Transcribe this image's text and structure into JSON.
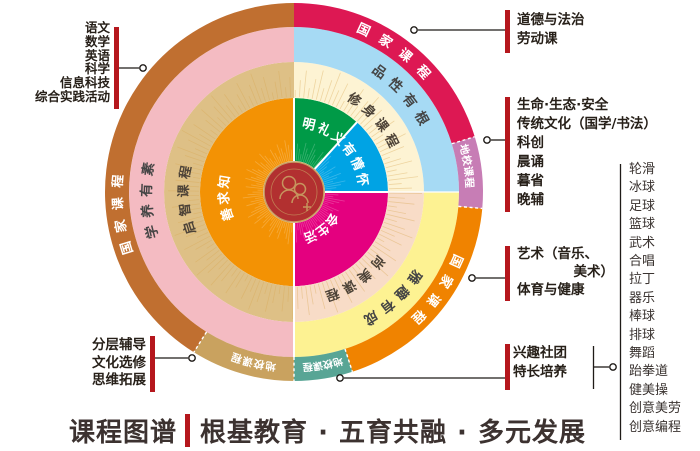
{
  "footer": {
    "title": "课程图谱",
    "slogan": "根基教育 · 五育共融 · 多元发展"
  },
  "colors": {
    "accent_red": "#b5171d",
    "connector_line": "#1f1b18",
    "center_disc": "#b23030",
    "center_gold": "#c9a063",
    "text_dark_on_ring": "#4d4338"
  },
  "callouts": {
    "national_left": {
      "lines": [
        "语文",
        "数学",
        "英语",
        "科学",
        "信息科技",
        "综合实践活动"
      ]
    },
    "school_left": {
      "lines": [
        "分层辅导",
        "文化选修",
        "思维拓展"
      ]
    },
    "national_top_right": {
      "lines": [
        "道德与法治",
        "劳动课"
      ]
    },
    "school_right": {
      "lines": [
        "生命·生态·安全",
        "传统文化（国学/书法）",
        "科创",
        "晨诵",
        "暮省",
        "晚辅"
      ]
    },
    "national_bottom_right": {
      "lines": [
        "艺术（音乐、",
        "美术）",
        "体育与健康"
      ]
    },
    "clubs": {
      "lines": [
        "兴趣社团",
        "特长培养"
      ]
    },
    "club_list": [
      "轮滑",
      "冰球",
      "足球",
      "篮球",
      "武术",
      "合唱",
      "拉丁",
      "器乐",
      "棒球",
      "排球",
      "舞蹈",
      "跆拳道",
      "健美操",
      "创意美劳",
      "创意编程"
    ]
  },
  "wheel": {
    "center": {
      "icon": "family-figures-icon"
    },
    "rings": [
      {
        "name": "core-values",
        "segments": [
          {
            "label": "明礼义",
            "color": "#009a47",
            "text_color": "#ffffff",
            "start": 0,
            "end": 42,
            "text_angle": 27,
            "text_radius": 65,
            "font_size": 13,
            "letter_spacing": 2.5
          },
          {
            "label": "有情怀",
            "color": "#00a3e4",
            "text_color": "#ffffff",
            "start": 42,
            "end": 90,
            "text_angle": 67,
            "text_radius": 65,
            "font_size": 13,
            "letter_spacing": 2.5
          },
          {
            "label": "会生活",
            "color": "#e4007f",
            "text_color": "#ffffff",
            "start": 90,
            "end": 180,
            "text_angle": 143,
            "text_radius": 43,
            "font_size": 12.5,
            "letter_spacing": 0
          },
          {
            "label": "善求知",
            "color": "#f39204",
            "text_color": "#ffffff",
            "start": 180,
            "end": 360,
            "text_angle": 266,
            "text_radius": 66,
            "font_size": 13,
            "letter_spacing": 2.5
          }
        ]
      },
      {
        "name": "course-groups",
        "segments": [
          {
            "label": "修身课程",
            "color": "#fdf3d3",
            "text_color": "#4d4338",
            "start": 0,
            "end": 90,
            "text_angle": 49,
            "text_radius": 106,
            "font_size": 13,
            "letter_spacing": 5
          },
          {
            "label": "尚美课程",
            "color": "#f8dcc7",
            "text_color": "#4d4338",
            "start": 90,
            "end": 180,
            "text_angle": 146,
            "text_radius": 105,
            "font_size": 13,
            "letter_spacing": 5
          },
          {
            "label": "启智课程",
            "color": "#dec086",
            "text_color": "#4d4338",
            "start": 180,
            "end": 360,
            "text_angle": 267,
            "text_radius": 106,
            "font_size": 13,
            "letter_spacing": 5
          }
        ]
      },
      {
        "name": "mottos",
        "segments": [
          {
            "label": "品性有根",
            "color": "#a6daf4",
            "text_color": "#454545",
            "start": 0,
            "end": 90,
            "text_angle": 49,
            "text_radius": 143,
            "font_size": 13.5,
            "letter_spacing": 7
          },
          {
            "label": "雅趣有成",
            "color": "#fdf292",
            "text_color": "#454545",
            "start": 90,
            "end": 180,
            "text_angle": 138,
            "text_radius": 143,
            "font_size": 13.5,
            "letter_spacing": 6
          },
          {
            "label": "学养有素",
            "color": "#f4bbc2",
            "text_color": "#454545",
            "start": 180,
            "end": 360,
            "text_angle": 268,
            "text_radius": 143,
            "font_size": 13.5,
            "letter_spacing": 7
          }
        ]
      },
      {
        "name": "course-types",
        "segments": [
          {
            "label": "国家课程",
            "color": "#dd1853",
            "text_color": "#ffffff",
            "start": 0,
            "end": 73,
            "text_angle": 37,
            "text_radius": 172,
            "font_size": 13,
            "letter_spacing": 11
          },
          {
            "label": "地校课程",
            "color": "#c77db5",
            "text_color": "#ffffff",
            "start": 73,
            "end": 95,
            "text_angle": 81.5,
            "text_radius": 172,
            "font_size": 10.5,
            "letter_spacing": 0.5
          },
          {
            "label": "国家课程",
            "color": "#f08300",
            "text_color": "#ffffff",
            "start": 95,
            "end": 162,
            "text_angle": 125.5,
            "text_radius": 172,
            "font_size": 13,
            "letter_spacing": 9
          },
          {
            "label": "地校课程",
            "color": "#58a595",
            "text_color": "#ffffff",
            "start": 162,
            "end": 180,
            "text_angle": 170.5,
            "text_radius": 172,
            "font_size": 10,
            "letter_spacing": 0
          },
          {
            "label": "地校课程",
            "color": "#c9a25f",
            "text_color": "#ffffff",
            "start": 180,
            "end": 212,
            "text_angle": 193.5,
            "text_radius": 172,
            "font_size": 10.5,
            "letter_spacing": 1
          },
          {
            "label": "国家课程",
            "color": "#c06f30",
            "text_color": "#ffffff",
            "start": 212,
            "end": 360,
            "text_angle": 264,
            "text_radius": 172,
            "font_size": 13,
            "letter_spacing": 9
          }
        ]
      }
    ]
  }
}
